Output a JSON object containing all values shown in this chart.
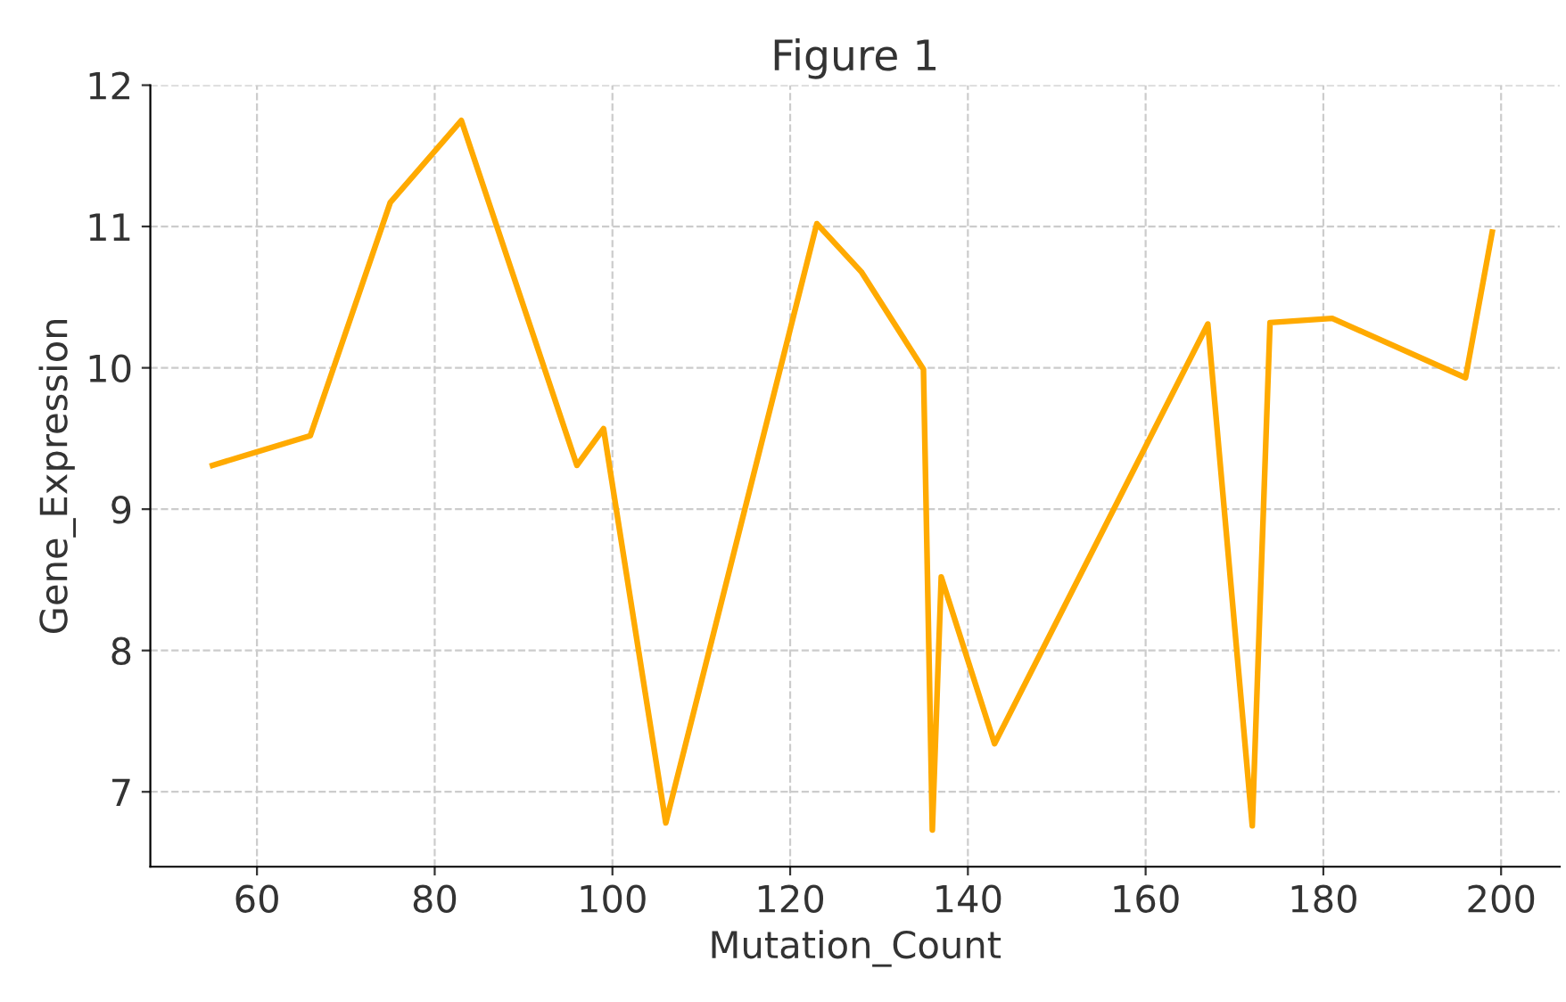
{
  "chart_data": {
    "type": "line",
    "title": "Figure 1",
    "xlabel": "Mutation_Count",
    "ylabel": "Gene_Expression",
    "x": [
      55,
      66,
      75,
      83,
      96,
      99,
      106,
      123,
      128,
      135,
      136,
      137,
      143,
      167,
      172,
      174,
      181,
      196,
      199
    ],
    "series": [
      {
        "color": "#ffaa00",
        "values": [
          9.31,
          9.52,
          11.17,
          11.75,
          9.31,
          9.57,
          6.78,
          11.02,
          10.68,
          9.99,
          6.73,
          8.52,
          7.34,
          10.31,
          6.76,
          10.32,
          10.35,
          9.93,
          10.96
        ]
      }
    ],
    "xlim": [
      48,
      206.6
    ],
    "ylim": [
      6.47,
      12
    ],
    "xticks": [
      60,
      80,
      100,
      120,
      140,
      160,
      180,
      200
    ],
    "yticks": [
      7,
      8,
      9,
      10,
      11,
      12
    ],
    "grid": true,
    "line_style": "solid"
  }
}
